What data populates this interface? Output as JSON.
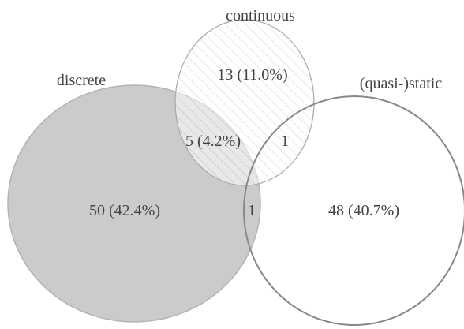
{
  "diagram": {
    "type": "venn",
    "sets": [
      {
        "id": "discrete",
        "label": "discrete",
        "fill": "#c8c8c8",
        "stroke": "#b4b4b4",
        "style": "solid"
      },
      {
        "id": "continuous",
        "label": "continuous",
        "fill": "#ffffff",
        "stroke": "#a8a8a8",
        "style": "hatched"
      },
      {
        "id": "quasi-static",
        "label": "(quasi-)static",
        "fill": "none",
        "stroke": "#888888",
        "style": "outline"
      }
    ],
    "regions": [
      {
        "sets": [
          "continuous"
        ],
        "label": "13 (11.0%)",
        "count": 13,
        "percent": 11.0
      },
      {
        "sets": [
          "discrete",
          "continuous"
        ],
        "label": "5 (4.2%)",
        "count": 5,
        "percent": 4.2
      },
      {
        "sets": [
          "continuous",
          "quasi-static"
        ],
        "label": "1",
        "count": 1
      },
      {
        "sets": [
          "discrete"
        ],
        "label": "50 (42.4%)",
        "count": 50,
        "percent": 42.4
      },
      {
        "sets": [
          "discrete",
          "quasi-static"
        ],
        "label": "1",
        "count": 1
      },
      {
        "sets": [
          "quasi-static"
        ],
        "label": "48 (40.7%)",
        "count": 48,
        "percent": 40.7
      }
    ]
  }
}
